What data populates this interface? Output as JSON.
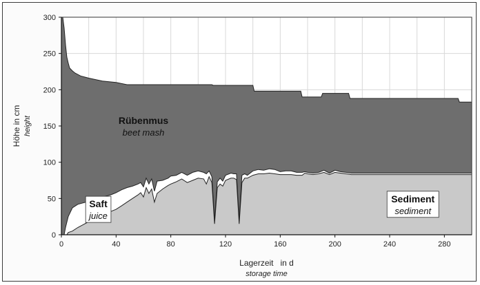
{
  "chart_data": {
    "type": "area",
    "xlabel": "Lagerzeit   in d",
    "xlabel_sub": "storage time",
    "ylabel": "Höhe in cm",
    "ylabel_sub": "height",
    "xlim": [
      0,
      300
    ],
    "ylim": [
      0,
      300
    ],
    "x_ticks": [
      0,
      40,
      80,
      120,
      160,
      200,
      240,
      280
    ],
    "y_ticks": [
      0,
      50,
      100,
      150,
      200,
      250,
      300
    ],
    "grid": true,
    "colors": {
      "beet_mash": "#6e6e6e",
      "juice": "#ffffff",
      "sediment": "#c9c9c9",
      "grid": "#d8d8d8",
      "outline": "#222222"
    },
    "series": [
      {
        "name": "Rübenmus",
        "name_en": "beet mash",
        "x": [
          0,
          1,
          2,
          3,
          4,
          5,
          6,
          8,
          10,
          14,
          20,
          30,
          40,
          48,
          80,
          110,
          111,
          140,
          141,
          175,
          176,
          190,
          191,
          210,
          211,
          240,
          290,
          291,
          300
        ],
        "y": [
          300,
          300,
          285,
          262,
          245,
          237,
          230,
          226,
          223,
          219,
          216,
          212,
          210,
          207,
          207,
          207,
          206,
          206,
          198,
          198,
          190,
          190,
          195,
          195,
          188,
          188,
          188,
          183,
          183
        ]
      },
      {
        "name": "Saft",
        "name_en": "juice",
        "x": [
          0,
          2,
          3,
          5,
          8,
          12,
          16,
          20,
          24,
          30,
          36,
          40,
          44,
          48,
          52,
          56,
          58,
          60,
          62,
          64,
          66,
          68,
          70,
          74,
          78,
          80,
          84,
          88,
          92,
          96,
          100,
          104,
          106,
          108,
          110,
          112,
          114,
          116,
          118,
          120,
          124,
          126,
          128,
          130,
          132,
          134,
          136,
          140,
          144,
          148,
          152,
          156,
          160,
          164,
          168,
          172,
          176,
          178,
          180,
          184,
          188,
          192,
          196,
          200,
          204,
          208,
          212,
          300
        ],
        "y": [
          0,
          0,
          10,
          25,
          37,
          42,
          44,
          46,
          49,
          52,
          55,
          58,
          62,
          65,
          67,
          70,
          72,
          66,
          78,
          70,
          77,
          60,
          74,
          75,
          78,
          81,
          82,
          86,
          82,
          86,
          88,
          86,
          84,
          88,
          80,
          20,
          73,
          78,
          74,
          82,
          85,
          84,
          84,
          20,
          82,
          84,
          82,
          88,
          90,
          89,
          91,
          90,
          87,
          88,
          88,
          86,
          86,
          87,
          86,
          85,
          86,
          89,
          85,
          89,
          87,
          86,
          85,
          85
        ]
      },
      {
        "name": "Sediment",
        "name_en": "sediment",
        "x": [
          0,
          4,
          5,
          8,
          12,
          16,
          20,
          24,
          30,
          36,
          40,
          44,
          48,
          52,
          56,
          58,
          60,
          62,
          64,
          66,
          68,
          70,
          74,
          78,
          80,
          84,
          88,
          92,
          96,
          100,
          104,
          106,
          108,
          110,
          112,
          114,
          116,
          118,
          120,
          124,
          126,
          128,
          130,
          132,
          134,
          136,
          140,
          144,
          148,
          152,
          156,
          160,
          164,
          168,
          172,
          176,
          178,
          180,
          184,
          188,
          192,
          196,
          200,
          204,
          208,
          212,
          300
        ],
        "y": [
          0,
          0,
          3,
          5,
          10,
          14,
          18,
          23,
          27,
          32,
          35,
          40,
          45,
          50,
          55,
          58,
          52,
          65,
          57,
          63,
          45,
          57,
          63,
          68,
          70,
          73,
          77,
          72,
          75,
          78,
          77,
          70,
          80,
          72,
          15,
          65,
          70,
          67,
          75,
          78,
          78,
          76,
          15,
          72,
          78,
          78,
          82,
          84,
          84,
          85,
          84,
          83,
          83,
          83,
          82,
          82,
          85,
          84,
          83,
          84,
          86,
          83,
          86,
          85,
          84,
          83,
          83
        ]
      }
    ],
    "annotations": [
      {
        "text": "Rübenmus",
        "sub": "beet mash",
        "x": 60,
        "y": 150
      },
      {
        "text": "Saft",
        "sub": "juice",
        "x": 27,
        "y": 35
      },
      {
        "text": "Sediment",
        "sub": "sediment",
        "x": 257,
        "y": 42
      }
    ]
  }
}
